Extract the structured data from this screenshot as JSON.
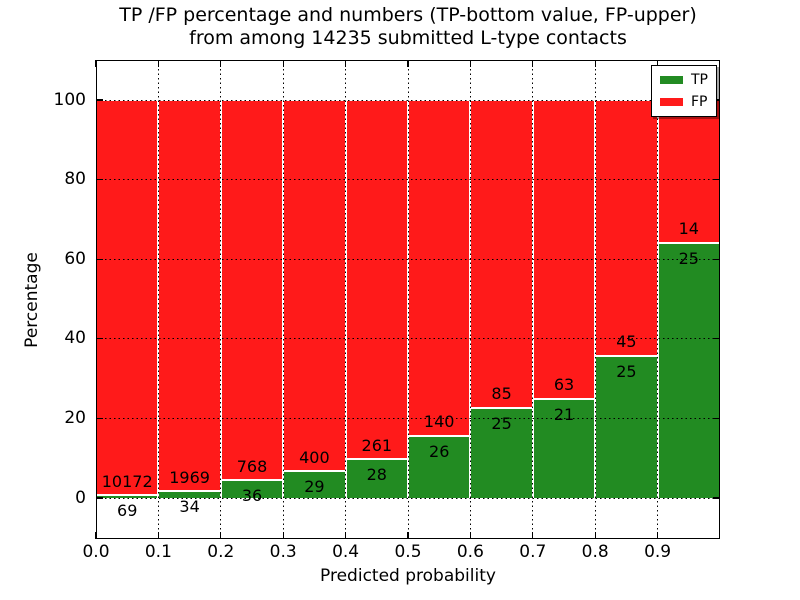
{
  "title": {
    "line1": "TP /FP percentage and numbers (TP-bottom value, FP-upper)",
    "line2": "from among 14235 submitted L-type contacts"
  },
  "axes": {
    "xlabel": "Predicted probability",
    "ylabel": "Percentage",
    "x_tick_labels": [
      "0.0",
      "0.1",
      "0.2",
      "0.3",
      "0.4",
      "0.5",
      "0.6",
      "0.7",
      "0.8",
      "0.9"
    ],
    "y_tick_labels": [
      "0",
      "20",
      "40",
      "60",
      "80",
      "100"
    ]
  },
  "legend": {
    "position": "upper right",
    "items": [
      {
        "label": "TP",
        "color": "#228b22"
      },
      {
        "label": "FP",
        "color": "#ff1a1a"
      }
    ]
  },
  "chart_data": {
    "type": "bar",
    "stacked": true,
    "units": "percent",
    "title": "TP /FP percentage and numbers (TP-bottom value, FP-upper) from among 14235 submitted L-type contacts",
    "xlabel": "Predicted probability",
    "ylabel": "Percentage",
    "xlim": [
      0.0,
      1.0
    ],
    "ylim": [
      -10,
      110
    ],
    "grid": true,
    "legend_position": "upper right",
    "bin_width": 0.1,
    "bin_starts": [
      0.0,
      0.1,
      0.2,
      0.3,
      0.4,
      0.5,
      0.6,
      0.7,
      0.8,
      0.9
    ],
    "total_contacts": 14235,
    "series": [
      {
        "name": "TP",
        "color": "#228b22",
        "counts": [
          69,
          34,
          36,
          29,
          28,
          26,
          25,
          21,
          25,
          25
        ],
        "percent": [
          0.67,
          1.7,
          4.48,
          6.76,
          9.69,
          15.66,
          22.73,
          25.0,
          35.71,
          64.1
        ]
      },
      {
        "name": "FP",
        "color": "#ff1a1a",
        "counts": [
          10172,
          1969,
          768,
          400,
          261,
          140,
          85,
          63,
          45,
          14
        ],
        "percent": [
          99.33,
          98.3,
          95.52,
          93.24,
          90.31,
          84.34,
          77.27,
          75.0,
          64.29,
          35.9
        ]
      }
    ]
  }
}
